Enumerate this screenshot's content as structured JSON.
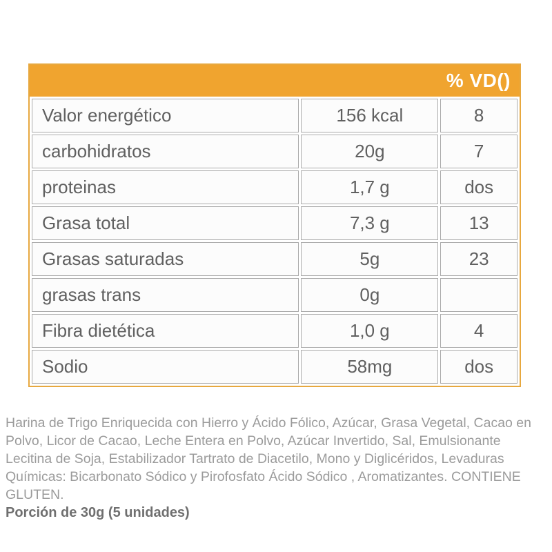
{
  "table": {
    "header": {
      "vd_label": "% VD()"
    },
    "rows": [
      {
        "name": "Valor energético",
        "value": "156 kcal",
        "vd": "8"
      },
      {
        "name": "carbohidratos",
        "value": "20g",
        "vd": "7"
      },
      {
        "name": "proteinas",
        "value": "1,7 g",
        "vd": "dos"
      },
      {
        "name": "Grasa total",
        "value": "7,3 g",
        "vd": "13"
      },
      {
        "name": "Grasas saturadas",
        "value": "5g",
        "vd": "23"
      },
      {
        "name": "grasas trans",
        "value": "0g",
        "vd": ""
      },
      {
        "name": "Fibra dietética",
        "value": "1,0 g",
        "vd": "4"
      },
      {
        "name": "Sodio",
        "value": "58mg",
        "vd": "dos"
      }
    ]
  },
  "ingredients": {
    "text": "Harina de Trigo Enriquecida con Hierro y Ácido Fólico, Azúcar, Grasa Vegetal, Cacao en Polvo, Licor de Cacao, Leche Entera en Polvo, Azúcar Invertido, Sal, Emulsionante Lecitina de Soja, Estabilizador Tartrato de Diacetilo, Mono y Diglicéridos, Levaduras Químicas: Bicarbonato Sódico y Pirofosfato Ácido Sódico , Aromatizantes. CONTIENE GLUTEN.",
    "portion": "Porción de 30g (5 unidades)"
  },
  "colors": {
    "header_orange": "#F0A42F",
    "table_border_orange": "#E7A83F",
    "cell_border_gray": "#A9A9A9",
    "cell_text_gray": "#606060",
    "ingredients_text_gray": "#9B9B9B"
  }
}
